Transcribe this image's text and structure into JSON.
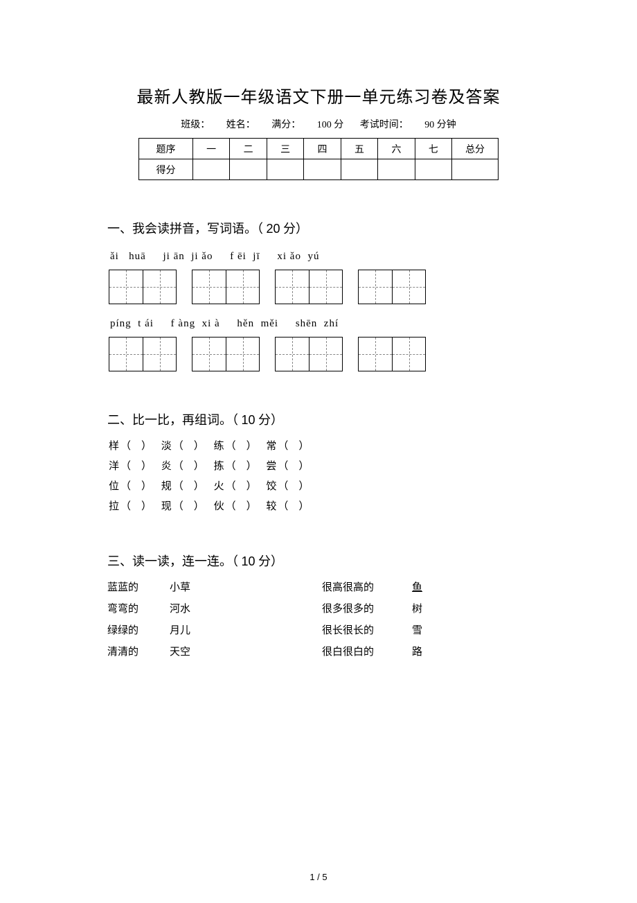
{
  "title": "最新人教版一年级语文下册一单元练习卷及答案",
  "meta": {
    "class_label": "班级：",
    "name_label": "姓名：",
    "full_score_label": "满分：",
    "full_score_value": "100 分",
    "time_label": "考试时间：",
    "time_value": "90 分钟"
  },
  "score_table": {
    "row1_label": "题序",
    "cols": [
      "一",
      "二",
      "三",
      "四",
      "五",
      "六",
      "七"
    ],
    "total_label": "总分",
    "row2_label": "得分"
  },
  "q1": {
    "heading_num": "一、",
    "heading_text": "我会读拼音，写词语。（",
    "points": "20",
    "points_suffix": "分）",
    "row1": {
      "pinyin": [
        "ǎi   huā",
        "ji ān  ji ǎo",
        "f ēi  jī",
        "xi ǎo  yú"
      ]
    },
    "row2": {
      "pinyin": [
        "píng  t ái",
        "f àng  xi à",
        "hěn  měi",
        "shēn  zhí"
      ]
    }
  },
  "q2": {
    "heading_num": "二、",
    "heading_text": "比一比，再组词。（",
    "points": "10",
    "points_suffix": "分）",
    "rows": [
      [
        "样",
        "淡",
        "练",
        "常"
      ],
      [
        "洋",
        "炎",
        "拣",
        "尝"
      ],
      [
        "位",
        "规",
        "火",
        "饺"
      ],
      [
        "拉",
        "现",
        "伙",
        "较"
      ]
    ],
    "paren_text": "（    ）"
  },
  "q3": {
    "heading_num": "三、",
    "heading_text": "读一读，连一连。（",
    "points": "10",
    "points_suffix": "分）",
    "rows": [
      {
        "a": "蓝蓝的",
        "b": "小草",
        "c": "很高很高的",
        "d": "鱼",
        "underline_d": true
      },
      {
        "a": "弯弯的",
        "b": "河水",
        "c": "很多很多的",
        "d": "树",
        "underline_d": false
      },
      {
        "a": "绿绿的",
        "b": "月儿",
        "c": "很长很长的",
        "d": "雪",
        "underline_d": false
      },
      {
        "a": "清清的",
        "b": "天空",
        "c": "很白很白的",
        "d": "路",
        "underline_d": false
      }
    ]
  },
  "page_num": "1 / 5"
}
